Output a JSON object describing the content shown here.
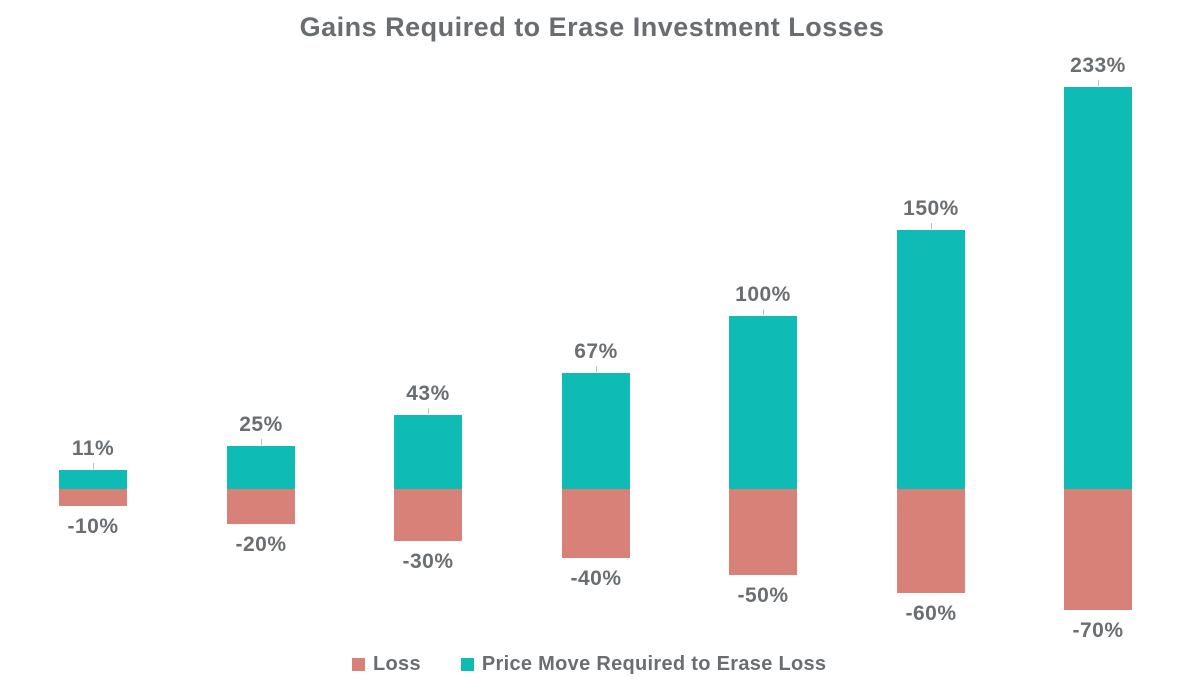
{
  "title": "Gains Required to Erase Investment Losses",
  "legend": {
    "loss_label": "Loss",
    "gain_label": "Price Move Required to Erase Loss"
  },
  "colors": {
    "loss": "#d88178",
    "gain": "#0fbcb5",
    "title_text": "#696d70",
    "label_text": "#6a6e71"
  },
  "chart_data": {
    "type": "bar",
    "subtype": "diverging-stacked-vertical",
    "title": "Gains Required to Erase Investment Losses",
    "categories": [
      "-10%",
      "-20%",
      "-30%",
      "-40%",
      "-50%",
      "-60%",
      "-70%"
    ],
    "series": [
      {
        "name": "Loss",
        "color": "#d88178",
        "values": [
          -10,
          -20,
          -30,
          -40,
          -50,
          -60,
          -70
        ]
      },
      {
        "name": "Price Move Required to Erase Loss",
        "color": "#0fbcb5",
        "values": [
          11,
          25,
          43,
          67,
          100,
          150,
          233
        ]
      }
    ],
    "gain_labels": [
      "11%",
      "25%",
      "43%",
      "67%",
      "100%",
      "150%",
      "233%"
    ],
    "loss_labels": [
      "-10%",
      "-20%",
      "-30%",
      "-40%",
      "-50%",
      "-60%",
      "-70%"
    ],
    "baseline_value": 0,
    "ylim": [
      -70,
      233
    ],
    "grid": false,
    "axes_hidden": true,
    "legend_position": "bottom"
  }
}
